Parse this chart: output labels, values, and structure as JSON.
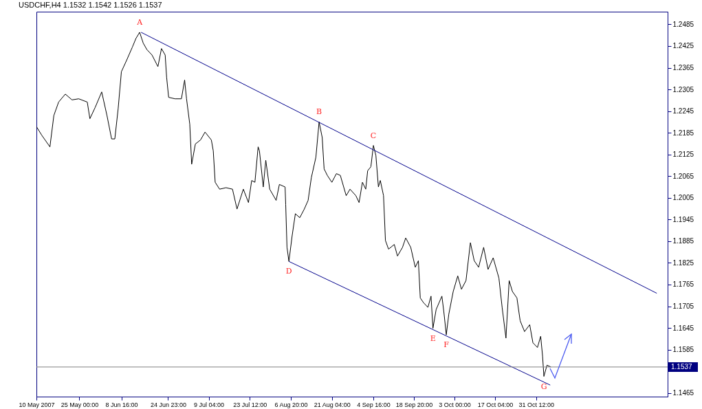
{
  "chart_data": {
    "type": "line",
    "title": "USDCHF,H4  1.1532 1.1542 1.1526 1.1537",
    "xlim": [
      "2007-05-10T00:00",
      "2007-12-16T10:00"
    ],
    "xticks": [
      {
        "value": "2007-05-10T00:00",
        "label": "10 May 2007"
      },
      {
        "value": "2007-05-25T00:00",
        "label": "25 May 00:00"
      },
      {
        "value": "2007-06-08T16:00",
        "label": "8 Jun 16:00"
      },
      {
        "value": "2007-06-24T23:00",
        "label": "24 Jun 23:00"
      },
      {
        "value": "2007-07-09T04:00",
        "label": "9 Jul 04:00"
      },
      {
        "value": "2007-07-23T12:00",
        "label": "23 Jul 12:00"
      },
      {
        "value": "2007-08-06T20:00",
        "label": "6 Aug 20:00"
      },
      {
        "value": "2007-08-21T04:00",
        "label": "21 Aug 04:00"
      },
      {
        "value": "2007-09-04T16:00",
        "label": "4 Sep 16:00"
      },
      {
        "value": "2007-09-18T20:00",
        "label": "18 Sep 20:00"
      },
      {
        "value": "2007-10-03T00:00",
        "label": "3 Oct 00:00"
      },
      {
        "value": "2007-10-17T04:00",
        "label": "17 Oct 04:00"
      },
      {
        "value": "2007-10-31T12:00",
        "label": "31 Oct 12:00"
      }
    ],
    "ylim": [
      1.1455,
      1.252
    ],
    "yticks": [
      1.2485,
      1.2425,
      1.2365,
      1.2305,
      1.2245,
      1.2185,
      1.2125,
      1.2065,
      1.2005,
      1.1945,
      1.1885,
      1.1825,
      1.1765,
      1.1705,
      1.1645,
      1.1585,
      {
        "value": 1.1525,
        "label": null
      },
      1.1465
    ],
    "grid": false,
    "marker": "none",
    "line_style": "solid",
    "series": [
      {
        "color": "#000000",
        "x": [
          "2007-05-10T00:00",
          "2007-05-11T21:00",
          "2007-05-14T17:00",
          "2007-05-16T02:00",
          "2007-05-17T18:00",
          "2007-05-20T02:00",
          "2007-05-22T10:00",
          "2007-05-24T18:00",
          "2007-05-27T18:00",
          "2007-05-28T16:00",
          "2007-05-30T12:00",
          "2007-06-01T19:00",
          "2007-06-03T15:00",
          "2007-06-05T06:00",
          "2007-06-06T09:00",
          "2007-06-07T13:00",
          "2007-06-08T16:00",
          "2007-06-10T11:00",
          "2007-06-12T12:00",
          "2007-06-13T18:00",
          "2007-06-15T01:00",
          "2007-06-16T07:00",
          "2007-06-17T14:00",
          "2007-06-19T09:00",
          "2007-06-21T10:00",
          "2007-06-22T16:00",
          "2007-06-23T23:00",
          "2007-06-24T11:00",
          "2007-06-25T04:00",
          "2007-06-27T10:00",
          "2007-06-29T15:00",
          "2007-06-30T18:00",
          "2007-07-01T10:00",
          "2007-07-02T13:00",
          "2007-07-03T05:00",
          "2007-07-04T12:00",
          "2007-07-06T07:00",
          "2007-07-07T21:00",
          "2007-07-10T02:00",
          "2007-07-10T18:00",
          "2007-07-11T10:00",
          "2007-07-12T23:00",
          "2007-07-15T05:00",
          "2007-07-17T11:00",
          "2007-07-19T01:00",
          "2007-07-21T06:00",
          "2007-07-23T01:00",
          "2007-07-24T04:00",
          "2007-07-25T07:00",
          "2007-07-26T10:00",
          "2007-07-26T21:00",
          "2007-07-28T05:00",
          "2007-07-29T02:00",
          "2007-07-30T11:00",
          "2007-08-01T17:00",
          "2007-08-02T20:00",
          "2007-08-04T20:00",
          "2007-08-05T01:00",
          "2007-08-05T12:00",
          "2007-08-06T04:00",
          "2007-08-07T07:00",
          "2007-08-08T10:00",
          "2007-08-09T23:00",
          "2007-08-11T13:00",
          "2007-08-12T21:00",
          "2007-08-14T00:00",
          "2007-08-15T14:00",
          "2007-08-16T17:00",
          "2007-08-17T19:00",
          "2007-08-18T11:00",
          "2007-08-19T14:00",
          "2007-08-21T04:00",
          "2007-08-22T18:00",
          "2007-08-24T03:00",
          "2007-08-26T04:00",
          "2007-08-27T12:00",
          "2007-08-29T13:00",
          "2007-08-30T16:00",
          "2007-08-31T20:00",
          "2007-09-02T00:00",
          "2007-09-02T16:00",
          "2007-09-03T19:00",
          "2007-09-04T16:00",
          "2007-09-05T13:00",
          "2007-09-06T10:00",
          "2007-09-07T02:00",
          "2007-09-08T05:00",
          "2007-09-08T21:00",
          "2007-09-09T23:00",
          "2007-09-11T23:00",
          "2007-09-13T02:00",
          "2007-09-14T20:00",
          "2007-09-15T23:00",
          "2007-09-17T17:00",
          "2007-09-19T07:00",
          "2007-09-20T09:00",
          "2007-09-21T01:00",
          "2007-09-22T04:00",
          "2007-09-23T17:00",
          "2007-09-24T19:00",
          "2007-09-25T11:00",
          "2007-09-26T14:00",
          "2007-09-28T14:00",
          "2007-09-29T06:00",
          "2007-09-30T03:00",
          "2007-10-01T00:00",
          "2007-10-02T13:00",
          "2007-10-04T03:00",
          "2007-10-05T10:00",
          "2007-10-07T00:00",
          "2007-10-08T13:00",
          "2007-10-09T21:00",
          "2007-10-11T10:00",
          "2007-10-13T04:00",
          "2007-10-14T17:00",
          "2007-10-16T12:00",
          "2007-10-18T12:00",
          "2007-10-19T15:00",
          "2007-10-20T23:00",
          "2007-10-22T02:00",
          "2007-10-23T05:00",
          "2007-10-24T19:00",
          "2007-10-25T22:00",
          "2007-10-27T11:00",
          "2007-10-29T06:00",
          "2007-10-30T09:00",
          "2007-10-31T23:00",
          "2007-11-02T02:00",
          "2007-11-02T18:00",
          "2007-11-03T05:00",
          "2007-11-04T07:00",
          "2007-11-05T16:00"
        ],
        "values": [
          1.2202,
          1.2178,
          1.2146,
          1.2233,
          1.227,
          1.2292,
          1.2276,
          1.2279,
          1.227,
          1.2224,
          1.2255,
          1.2298,
          1.2233,
          1.2168,
          1.2168,
          1.2252,
          1.2354,
          1.2385,
          1.2422,
          1.2446,
          1.2463,
          1.2433,
          1.2415,
          1.24,
          1.2368,
          1.2418,
          1.24,
          1.2339,
          1.2283,
          1.2279,
          1.2279,
          1.2331,
          1.2279,
          1.2209,
          1.2098,
          1.2154,
          1.2165,
          1.2187,
          1.2165,
          1.2135,
          1.2048,
          1.2029,
          1.2033,
          1.2029,
          1.1974,
          1.2029,
          1.1992,
          1.2053,
          1.2048,
          1.2146,
          1.2135,
          1.2035,
          1.2109,
          1.2029,
          1.1998,
          1.2042,
          1.2035,
          1.1987,
          1.1868,
          1.1829,
          1.19,
          1.1961,
          1.195,
          1.1974,
          1.1998,
          1.2061,
          1.2117,
          1.2215,
          1.2172,
          1.2085,
          1.2067,
          1.2048,
          1.2072,
          1.2067,
          1.2011,
          1.2029,
          1.2011,
          1.1992,
          1.2048,
          1.2029,
          1.208,
          1.2091,
          1.215,
          1.2122,
          1.2035,
          1.2053,
          1.2011,
          1.1887,
          1.1863,
          1.1876,
          1.1844,
          1.1868,
          1.1894,
          1.1868,
          1.1813,
          1.1831,
          1.1728,
          1.1715,
          1.1702,
          1.1733,
          1.1644,
          1.1696,
          1.1733,
          1.1691,
          1.1626,
          1.1683,
          1.1746,
          1.1789,
          1.1752,
          1.1776,
          1.1881,
          1.1831,
          1.1813,
          1.1868,
          1.1807,
          1.1839,
          1.1783,
          1.1702,
          1.1617,
          1.1776,
          1.1746,
          1.1728,
          1.1665,
          1.1635,
          1.1654,
          1.1604,
          1.1591,
          1.1622,
          1.1567,
          1.1511,
          1.1542,
          1.1537
        ]
      },
      {
        "type": "line",
        "color": "#00008b",
        "x": [
          "2007-06-15T13:00",
          "2007-12-12T15:00"
        ],
        "values": [
          1.2463,
          1.1741
        ]
      },
      {
        "type": "line",
        "color": "#00008b",
        "x": [
          "2007-08-06T04:00",
          "2007-11-05T10:00"
        ],
        "values": [
          1.1829,
          1.1487
        ]
      }
    ],
    "ref_lines": [
      {
        "axis": "y",
        "value": 1.1537,
        "label": "1.1537",
        "color": "#808080"
      }
    ],
    "annotations": [
      {
        "text": "A",
        "x": "2007-06-15T01:00",
        "y": 1.2463
      },
      {
        "text": "B",
        "x": "2007-08-16T17:00",
        "y": 1.2215
      },
      {
        "text": "C",
        "x": "2007-09-04T16:00",
        "y": 1.215
      },
      {
        "text": "D",
        "x": "2007-08-06T04:00",
        "y": 1.1829
      },
      {
        "text": "E",
        "x": "2007-09-25T11:00",
        "y": 1.1644
      },
      {
        "text": "F",
        "x": "2007-09-30T03:00",
        "y": 1.1626
      },
      {
        "text": "G",
        "x": "2007-11-03T05:00",
        "y": 1.1511
      }
    ]
  }
}
